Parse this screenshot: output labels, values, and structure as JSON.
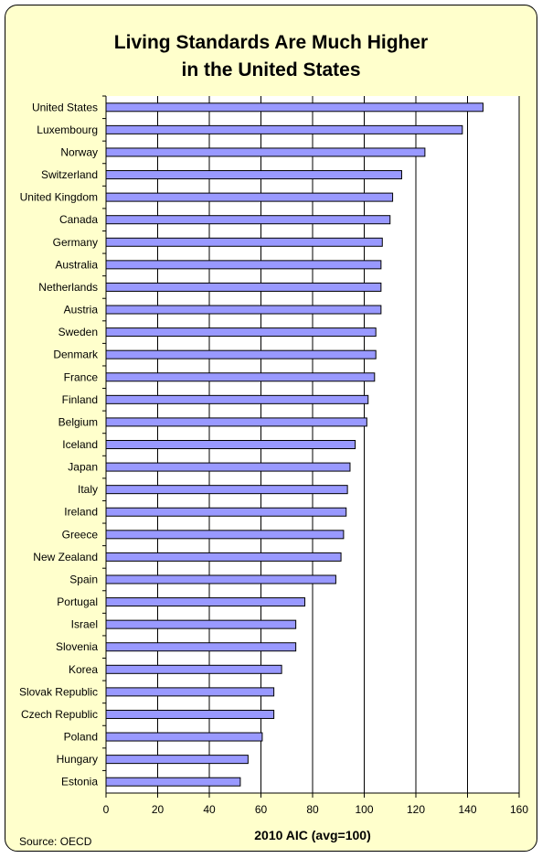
{
  "chart_data": {
    "type": "bar",
    "orientation": "horizontal",
    "title_lines": [
      "Living Standards Are Much Higher",
      "in the United States"
    ],
    "xlabel": "2010 AIC (avg=100)",
    "source": "Source: OECD",
    "categories": [
      "United States",
      "Luxembourg",
      "Norway",
      "Switzerland",
      "United Kingdom",
      "Canada",
      "Germany",
      "Australia",
      "Netherlands",
      "Austria",
      "Sweden",
      "Denmark",
      "France",
      "Finland",
      "Belgium",
      "Iceland",
      "Japan",
      "Italy",
      "Ireland",
      "Greece",
      "New Zealand",
      "Spain",
      "Portugal",
      "Israel",
      "Slovenia",
      "Korea",
      "Slovak Republic",
      "Czech Republic",
      "Poland",
      "Hungary",
      "Estonia"
    ],
    "values": [
      146,
      138,
      123.5,
      114.5,
      111,
      110,
      107,
      106.5,
      106.5,
      106.5,
      104.5,
      104.5,
      104,
      101.5,
      101,
      96.5,
      94.5,
      93.5,
      93,
      92,
      91,
      89,
      77,
      73.5,
      73.5,
      68,
      65,
      65,
      60.5,
      55,
      52
    ],
    "xlim": [
      0,
      160
    ],
    "xticks": [
      "0",
      "20",
      "40",
      "60",
      "80",
      "100",
      "120",
      "140",
      "160"
    ],
    "grid": true,
    "bar_color": "#9999ff",
    "bar_edge_color": "#000000"
  }
}
